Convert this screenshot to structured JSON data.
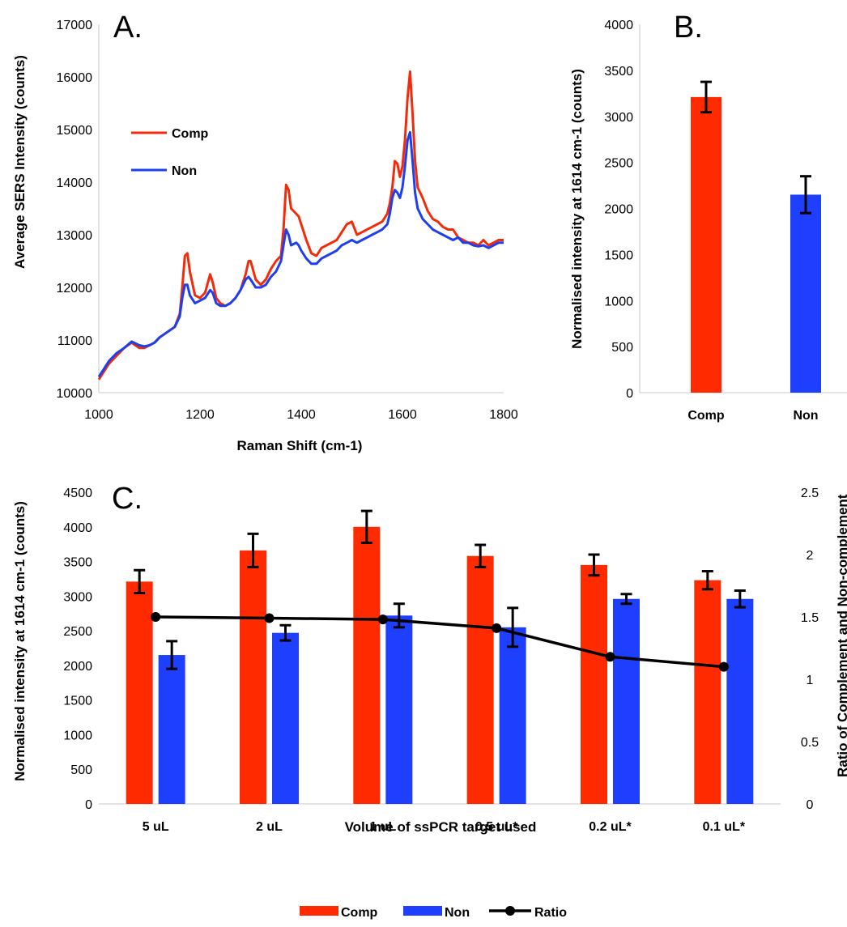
{
  "chart_data": [
    {
      "panel": "A.",
      "type": "line",
      "xlabel": "Raman Shift (cm-1)",
      "ylabel": "Average SERS Intensity (counts)",
      "xlim": [
        1000,
        1800
      ],
      "ylim": [
        10000,
        17000
      ],
      "xticks": [
        "1000",
        "1200",
        "1400",
        "1600",
        "1800"
      ],
      "yticks": [
        "10000",
        "11000",
        "12000",
        "13000",
        "14000",
        "15000",
        "16000",
        "17000"
      ],
      "legend": "top-left inside",
      "series": [
        {
          "name": "Comp",
          "color": "#f22c0a",
          "x": [
            1000,
            1010,
            1020,
            1035,
            1050,
            1065,
            1080,
            1090,
            1100,
            1110,
            1120,
            1135,
            1150,
            1160,
            1165,
            1170,
            1175,
            1180,
            1190,
            1200,
            1210,
            1220,
            1225,
            1232,
            1240,
            1250,
            1260,
            1270,
            1280,
            1290,
            1296,
            1300,
            1310,
            1320,
            1330,
            1340,
            1350,
            1360,
            1365,
            1370,
            1375,
            1380,
            1390,
            1395,
            1400,
            1410,
            1420,
            1430,
            1440,
            1450,
            1460,
            1470,
            1480,
            1490,
            1500,
            1510,
            1520,
            1530,
            1540,
            1550,
            1560,
            1570,
            1575,
            1580,
            1585,
            1590,
            1595,
            1600,
            1605,
            1610,
            1615,
            1620,
            1625,
            1630,
            1640,
            1650,
            1660,
            1670,
            1680,
            1690,
            1700,
            1710,
            1720,
            1730,
            1740,
            1750,
            1760,
            1770,
            1780,
            1790,
            1800
          ],
          "y": [
            10250,
            10400,
            10550,
            10700,
            10850,
            10950,
            10850,
            10850,
            10900,
            10950,
            11050,
            11150,
            11250,
            11500,
            12000,
            12600,
            12650,
            12300,
            11850,
            11800,
            11900,
            12250,
            12100,
            11800,
            11700,
            11650,
            11700,
            11800,
            11950,
            12250,
            12500,
            12500,
            12150,
            12050,
            12150,
            12350,
            12500,
            12600,
            13100,
            13950,
            13850,
            13500,
            13400,
            13350,
            13200,
            12900,
            12650,
            12600,
            12750,
            12800,
            12850,
            12900,
            13050,
            13200,
            13250,
            13000,
            13050,
            13100,
            13150,
            13200,
            13250,
            13400,
            13600,
            13900,
            14400,
            14350,
            14100,
            14300,
            14800,
            15600,
            16100,
            15300,
            14400,
            13900,
            13700,
            13450,
            13300,
            13250,
            13150,
            13100,
            13100,
            12950,
            12900,
            12850,
            12850,
            12800,
            12900,
            12800,
            12850,
            12900,
            12900
          ]
        },
        {
          "name": "Non",
          "color": "#1e3ff0",
          "x": [
            1000,
            1010,
            1020,
            1035,
            1050,
            1065,
            1080,
            1090,
            1100,
            1110,
            1120,
            1135,
            1150,
            1160,
            1165,
            1170,
            1175,
            1180,
            1190,
            1200,
            1210,
            1220,
            1225,
            1232,
            1240,
            1250,
            1260,
            1270,
            1280,
            1290,
            1296,
            1300,
            1310,
            1320,
            1330,
            1340,
            1350,
            1360,
            1365,
            1370,
            1375,
            1380,
            1390,
            1395,
            1400,
            1410,
            1420,
            1430,
            1440,
            1450,
            1460,
            1470,
            1480,
            1490,
            1500,
            1510,
            1520,
            1530,
            1540,
            1550,
            1560,
            1570,
            1575,
            1580,
            1585,
            1590,
            1595,
            1600,
            1605,
            1610,
            1615,
            1620,
            1625,
            1630,
            1640,
            1650,
            1660,
            1670,
            1680,
            1690,
            1700,
            1710,
            1720,
            1730,
            1740,
            1750,
            1760,
            1770,
            1780,
            1790,
            1800
          ],
          "y": [
            10300,
            10450,
            10600,
            10750,
            10850,
            10970,
            10900,
            10880,
            10900,
            10950,
            11050,
            11150,
            11250,
            11450,
            11800,
            12050,
            12050,
            11850,
            11700,
            11750,
            11800,
            11950,
            11900,
            11700,
            11650,
            11650,
            11700,
            11800,
            11950,
            12150,
            12200,
            12150,
            12000,
            12000,
            12050,
            12200,
            12300,
            12500,
            12800,
            13100,
            13000,
            12800,
            12850,
            12800,
            12700,
            12550,
            12450,
            12450,
            12550,
            12600,
            12650,
            12700,
            12800,
            12850,
            12900,
            12850,
            12900,
            12950,
            13000,
            13050,
            13100,
            13200,
            13400,
            13700,
            13850,
            13800,
            13700,
            13900,
            14300,
            14800,
            14950,
            14400,
            13800,
            13500,
            13300,
            13200,
            13100,
            13050,
            13000,
            12950,
            12900,
            12950,
            12850,
            12850,
            12800,
            12780,
            12800,
            12750,
            12800,
            12850,
            12850
          ]
        }
      ]
    },
    {
      "panel": "B.",
      "type": "bar",
      "ylabel": "Normalised intensity at 1614 cm-1 (counts)",
      "ylim": [
        0,
        4000
      ],
      "yticks": [
        "0",
        "500",
        "1000",
        "1500",
        "2000",
        "2500",
        "3000",
        "3500",
        "4000"
      ],
      "categories": [
        "Comp",
        "Non"
      ],
      "values": [
        3210,
        2150
      ],
      "errors": [
        165,
        200
      ],
      "colors": [
        "#ff2a00",
        "#1f3fff"
      ]
    },
    {
      "panel": "C.",
      "type": "bar",
      "xlabel": "Volume of ssPCR target used",
      "ylabel": "Normalised intensity at 1614 cm-1 (counts)",
      "y2label": "Ratio of Complement and Non-complement",
      "ylim": [
        0,
        4500
      ],
      "y2lim": [
        0,
        2.5
      ],
      "yticks": [
        "0",
        "500",
        "1000",
        "1500",
        "2000",
        "2500",
        "3000",
        "3500",
        "4000",
        "4500"
      ],
      "y2ticks": [
        "0",
        "0.5",
        "1",
        "1.5",
        "2",
        "2.5"
      ],
      "categories": [
        "5 uL",
        "2 uL",
        "1 uL",
        "0.5 uL*",
        "0.2 uL*",
        "0.1 uL*"
      ],
      "legend": "bottom",
      "series": [
        {
          "name": "Comp",
          "color": "#ff2a00",
          "values": [
            3210,
            3660,
            4000,
            3580,
            3450,
            3230
          ],
          "errors": [
            165,
            240,
            230,
            160,
            150,
            130
          ]
        },
        {
          "name": "Non",
          "color": "#1f3fff",
          "values": [
            2150,
            2470,
            2720,
            2550,
            2960,
            2960
          ],
          "errors": [
            200,
            110,
            170,
            280,
            70,
            120
          ]
        },
        {
          "name": "Ratio",
          "color": "#000000",
          "axis": "right",
          "values": [
            1.5,
            1.49,
            1.48,
            1.41,
            1.18,
            1.1
          ]
        }
      ]
    }
  ],
  "legend_c": {
    "comp": "Comp",
    "non": "Non",
    "ratio": "Ratio"
  }
}
